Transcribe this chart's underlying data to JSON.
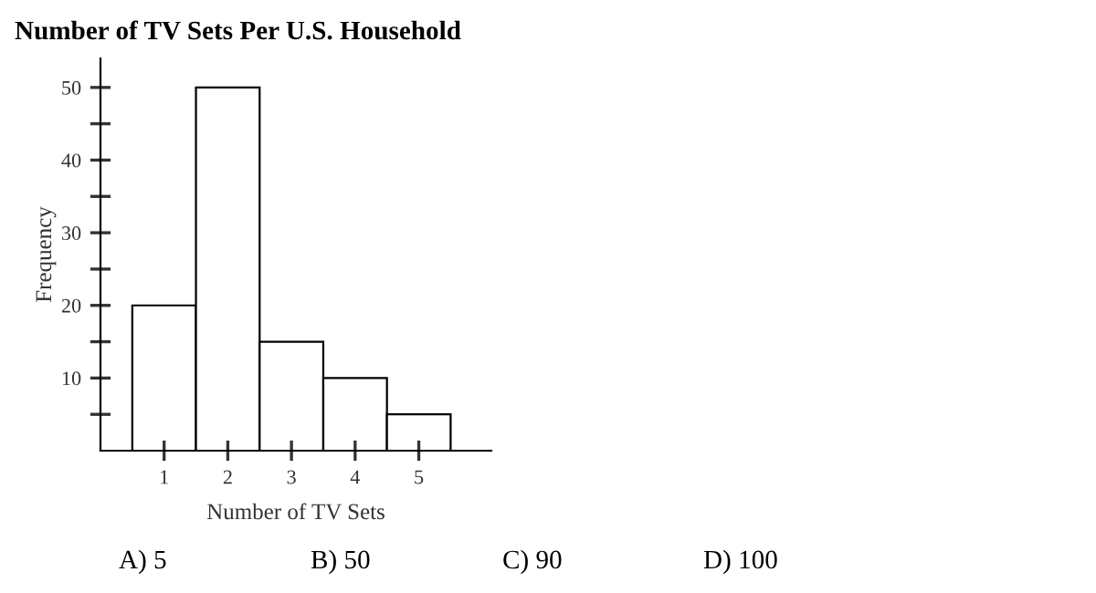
{
  "chart_data": {
    "type": "histogram",
    "title": "Number of TV Sets Per U.S. Household",
    "xlabel": "Number of TV Sets",
    "ylabel": "Frequency",
    "bins": [
      0.5,
      1.5,
      2.5,
      3.5,
      4.5,
      5.5
    ],
    "values": [
      20,
      50,
      15,
      10,
      5
    ],
    "color": "#ffffff",
    "xlim": [
      0,
      6.14
    ],
    "xticks": [
      1,
      2,
      3,
      4,
      5
    ],
    "ylim": [
      0,
      54
    ],
    "yticks": [
      {
        "value": 5,
        "label": null
      },
      10,
      {
        "value": 15,
        "label": null
      },
      20,
      {
        "value": 25,
        "label": null
      },
      30,
      {
        "value": 35,
        "label": null
      },
      40,
      {
        "value": 45,
        "label": null
      },
      50
    ],
    "grid": false,
    "legend": false,
    "annotations": [
      "A) 5",
      "B) 50",
      "C) 90",
      "D) 100"
    ]
  }
}
